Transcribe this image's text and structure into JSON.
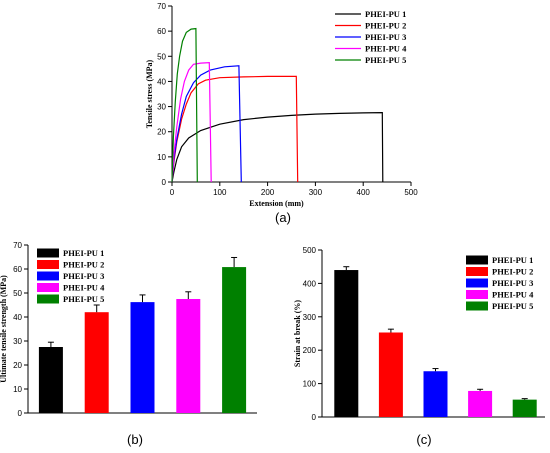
{
  "chart_data": [
    {
      "id": "a",
      "type": "line",
      "panel_label": "(a)",
      "xlabel": "Extension (mm)",
      "ylabel": "Tensile stress (MPa)",
      "xlim": [
        0,
        500
      ],
      "ylim": [
        0,
        70
      ],
      "xticks": [
        0,
        100,
        200,
        300,
        400,
        500
      ],
      "yticks": [
        0,
        10,
        20,
        30,
        40,
        50,
        60,
        70
      ],
      "legend_position": "top-right",
      "series": [
        {
          "name": "PHEI-PU 1",
          "color": "#000000",
          "points": [
            [
              0,
              0
            ],
            [
              4,
              4
            ],
            [
              10,
              9
            ],
            [
              20,
              14
            ],
            [
              35,
              17.5
            ],
            [
              60,
              20.5
            ],
            [
              100,
              23
            ],
            [
              150,
              24.8
            ],
            [
              200,
              25.8
            ],
            [
              250,
              26.5
            ],
            [
              300,
              27
            ],
            [
              350,
              27.3
            ],
            [
              400,
              27.5
            ],
            [
              440,
              27.6
            ],
            [
              441,
              0
            ]
          ]
        },
        {
          "name": "PHEI-PU 2",
          "color": "#ff0000",
          "points": [
            [
              0,
              0
            ],
            [
              4,
              8
            ],
            [
              10,
              16
            ],
            [
              20,
              25
            ],
            [
              30,
              31
            ],
            [
              40,
              35.5
            ],
            [
              55,
              39
            ],
            [
              70,
              40.5
            ],
            [
              100,
              41.5
            ],
            [
              150,
              41.8
            ],
            [
              200,
              42
            ],
            [
              260,
              42
            ],
            [
              263,
              0
            ]
          ]
        },
        {
          "name": "PHEI-PU 3",
          "color": "#0000ff",
          "points": [
            [
              0,
              0
            ],
            [
              4,
              9
            ],
            [
              10,
              17
            ],
            [
              20,
              27
            ],
            [
              30,
              34
            ],
            [
              45,
              39.5
            ],
            [
              60,
              42.5
            ],
            [
              80,
              44.5
            ],
            [
              110,
              45.8
            ],
            [
              140,
              46.2
            ],
            [
              145,
              0
            ]
          ]
        },
        {
          "name": "PHEI-PU 4",
          "color": "#ff00ff",
          "points": [
            [
              0,
              0
            ],
            [
              4,
              11
            ],
            [
              10,
              22
            ],
            [
              18,
              33
            ],
            [
              26,
              40
            ],
            [
              35,
              44.5
            ],
            [
              45,
              46.8
            ],
            [
              60,
              47.3
            ],
            [
              78,
              47.5
            ],
            [
              82,
              0
            ]
          ]
        },
        {
          "name": "PHEI-PU 5",
          "color": "#008000",
          "points": [
            [
              0,
              0
            ],
            [
              3,
              18
            ],
            [
              7,
              32
            ],
            [
              11,
              43
            ],
            [
              16,
              50
            ],
            [
              22,
              56
            ],
            [
              30,
              59.5
            ],
            [
              40,
              60.8
            ],
            [
              50,
              61
            ],
            [
              53,
              0
            ]
          ]
        }
      ]
    },
    {
      "id": "b",
      "type": "bar",
      "panel_label": "(b)",
      "xlabel": "",
      "ylabel": "Ultimate tensile strength (MPa)",
      "ylim": [
        0,
        70
      ],
      "yticks": [
        0,
        10,
        20,
        30,
        40,
        50,
        60,
        70
      ],
      "legend_position": "top-left",
      "categories": [
        "PHEI-PU 1",
        "PHEI-PU 2",
        "PHEI-PU 3",
        "PHEI-PU 4",
        "PHEI-PU 5"
      ],
      "values": [
        27.5,
        42,
        46.2,
        47.5,
        60.8
      ],
      "errors": [
        2,
        3,
        3,
        3,
        4
      ],
      "colors": [
        "#000000",
        "#ff0000",
        "#0000ff",
        "#ff00ff",
        "#008000"
      ]
    },
    {
      "id": "c",
      "type": "bar",
      "panel_label": "(c)",
      "xlabel": "",
      "ylabel": "Strain at break (%)",
      "ylim": [
        0,
        500
      ],
      "yticks": [
        0,
        100,
        200,
        300,
        400,
        500
      ],
      "legend_position": "top-right",
      "categories": [
        "PHEI-PU 1",
        "PHEI-PU 2",
        "PHEI-PU 3",
        "PHEI-PU 4",
        "PHEI-PU 5"
      ],
      "values": [
        440,
        253,
        137,
        78,
        52
      ],
      "errors": [
        10,
        10,
        8,
        5,
        3
      ],
      "colors": [
        "#000000",
        "#ff0000",
        "#0000ff",
        "#ff00ff",
        "#008000"
      ]
    }
  ]
}
